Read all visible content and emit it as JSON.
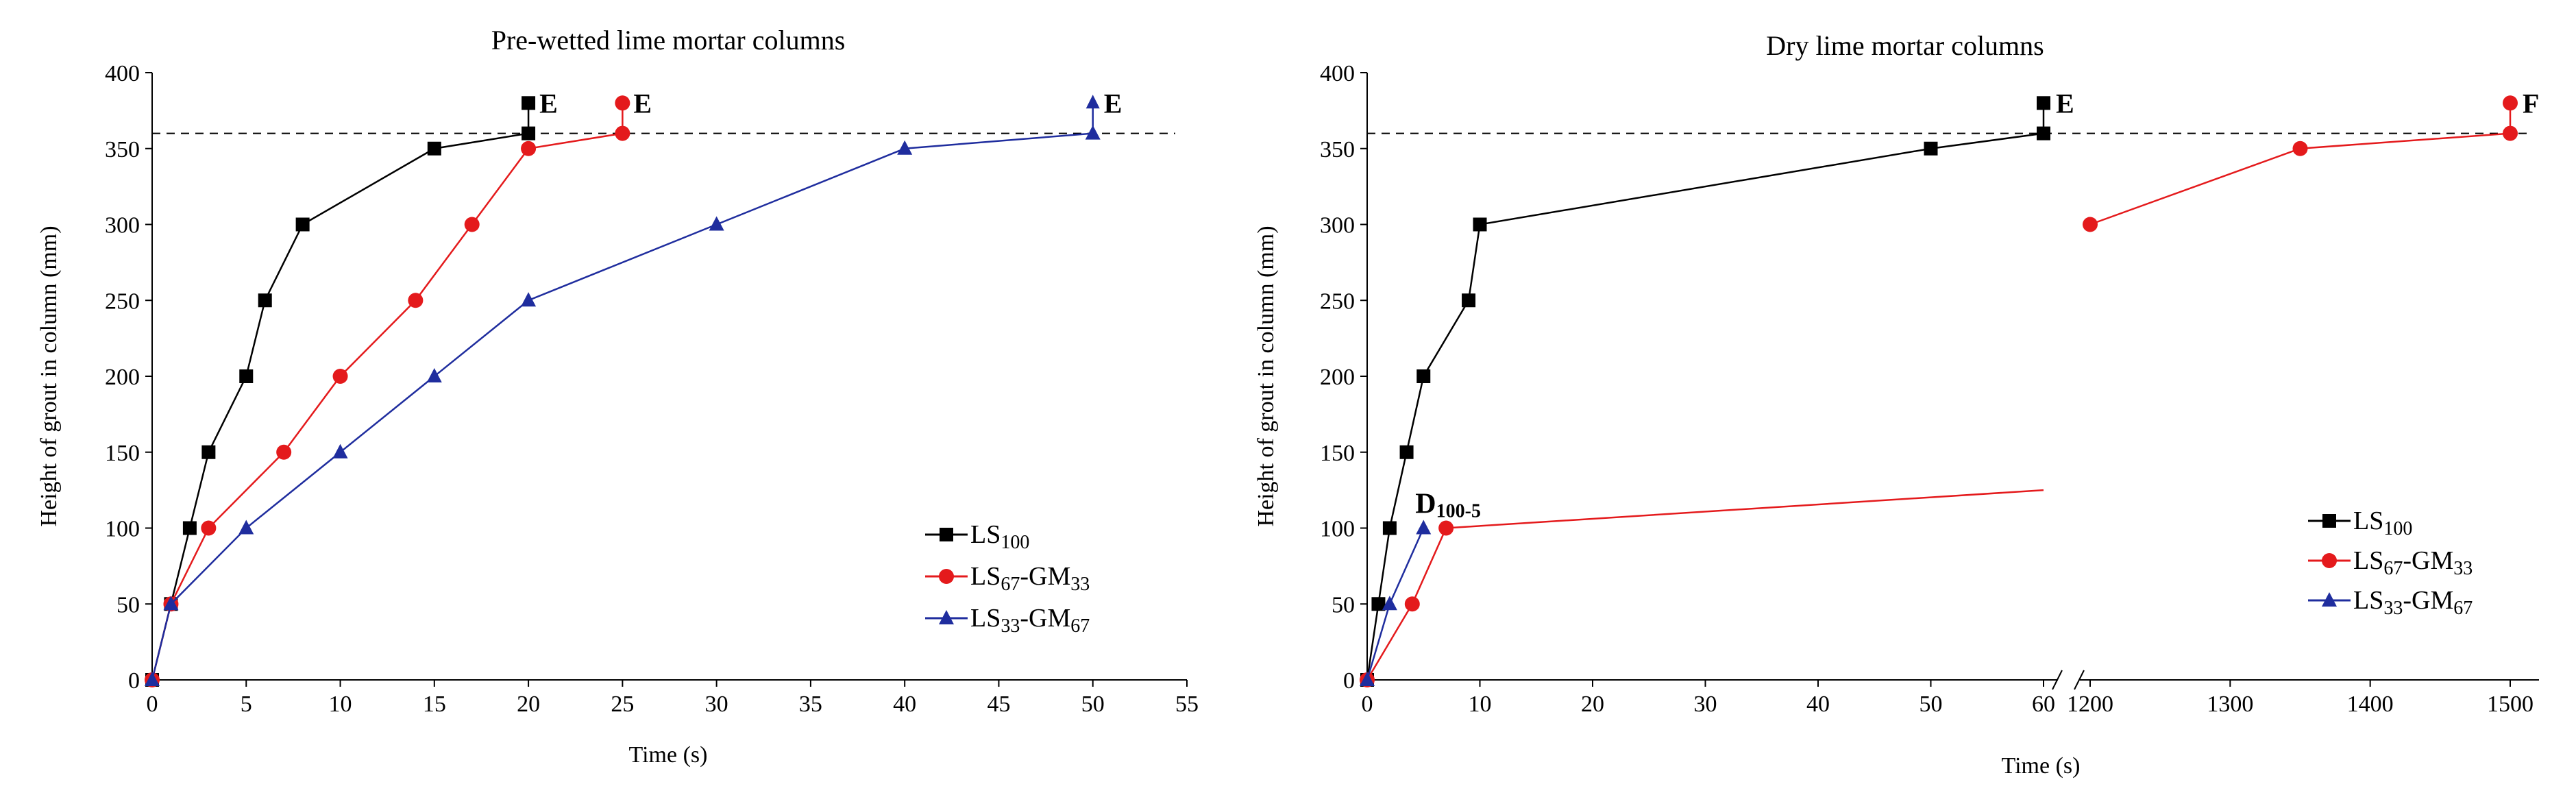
{
  "chart_data": [
    {
      "type": "line",
      "title": "Pre-wetted lime mortar columns",
      "xlabel": "Time (s)",
      "ylabel": "Height of grout in column (mm)",
      "xlim": [
        0,
        55
      ],
      "ylim": [
        0,
        400
      ],
      "xticks": [
        "0",
        "5",
        "10",
        "15",
        "20",
        "25",
        "30",
        "35",
        "40",
        "45",
        "50",
        "55"
      ],
      "yticks": [
        "0",
        "50",
        "100",
        "150",
        "200",
        "250",
        "300",
        "350",
        "400"
      ],
      "reference_line_y": 360,
      "series": [
        {
          "name": "LS100",
          "legend_base": "LS",
          "legend_sub": "100",
          "color": "#000000",
          "marker": "square",
          "x": [
            0,
            1,
            2,
            3,
            5,
            6,
            8,
            15,
            20
          ],
          "y": [
            0,
            50,
            100,
            150,
            200,
            250,
            300,
            350,
            360
          ],
          "end": {
            "x": 20,
            "y": 380,
            "label": "E"
          }
        },
        {
          "name": "LS67-GM33",
          "legend_base": "LS",
          "legend_sub": "67",
          "legend_mid": "-GM",
          "legend_sub2": "33",
          "color": "#e41a1c",
          "marker": "circle",
          "x": [
            0,
            1,
            3,
            7,
            10,
            14,
            17,
            20,
            25
          ],
          "y": [
            0,
            50,
            100,
            150,
            200,
            250,
            300,
            350,
            360
          ],
          "end": {
            "x": 25,
            "y": 380,
            "label": "E"
          }
        },
        {
          "name": "LS33-GM67",
          "legend_base": "LS",
          "legend_sub": "33",
          "legend_mid": "-GM",
          "legend_sub2": "67",
          "color": "#1f2d9e",
          "marker": "triangle",
          "x": [
            0,
            1,
            5,
            10,
            15,
            20,
            30,
            40,
            50
          ],
          "y": [
            0,
            50,
            100,
            150,
            200,
            250,
            300,
            350,
            360
          ],
          "end": {
            "x": 50,
            "y": 380,
            "label": "E",
            "arrow": true
          }
        }
      ]
    },
    {
      "type": "line",
      "title": "Dry lime mortar columns",
      "xlabel": "Time (s)",
      "ylabel": "Height of grout in column (mm)",
      "xlim_segment1": [
        0,
        60
      ],
      "xlim_segment2": [
        1200,
        1500
      ],
      "ylim": [
        0,
        400
      ],
      "xticks_segment1": [
        "0",
        "10",
        "20",
        "30",
        "40",
        "50",
        "60"
      ],
      "xticks_segment2": [
        "1200",
        "1300",
        "1400",
        "1500"
      ],
      "yticks": [
        "0",
        "50",
        "100",
        "150",
        "200",
        "250",
        "300",
        "350",
        "400"
      ],
      "reference_line_y": 360,
      "series": [
        {
          "name": "LS100",
          "legend_base": "LS",
          "legend_sub": "100",
          "color": "#000000",
          "marker": "square",
          "x": [
            0,
            1,
            2,
            3.5,
            5,
            9,
            10,
            50,
            60
          ],
          "y": [
            0,
            50,
            100,
            150,
            200,
            250,
            300,
            350,
            360
          ],
          "end": {
            "x": 60,
            "y": 380,
            "label": "E"
          }
        },
        {
          "name": "LS67-GM33",
          "legend_base": "LS",
          "legend_sub": "67",
          "legend_mid": "-GM",
          "legend_sub2": "33",
          "color": "#e41a1c",
          "marker": "circle",
          "x": [
            0,
            4,
            7
          ],
          "y": [
            0,
            50,
            100
          ],
          "extension": {
            "x": 60,
            "y": 125
          },
          "x2": [
            1200,
            1350,
            1500
          ],
          "y2": [
            300,
            350,
            360
          ],
          "end": {
            "x": 1500,
            "y": 380,
            "label": "F"
          }
        },
        {
          "name": "LS33-GM67",
          "legend_base": "LS",
          "legend_sub": "33",
          "legend_mid": "-GM",
          "legend_sub2": "67",
          "color": "#1f2d9e",
          "marker": "triangle",
          "x": [
            0,
            2,
            5
          ],
          "y": [
            0,
            50,
            100
          ],
          "end": {
            "x": 5,
            "y": 100,
            "label": "D",
            "label_sub": "100-5"
          }
        }
      ]
    }
  ]
}
